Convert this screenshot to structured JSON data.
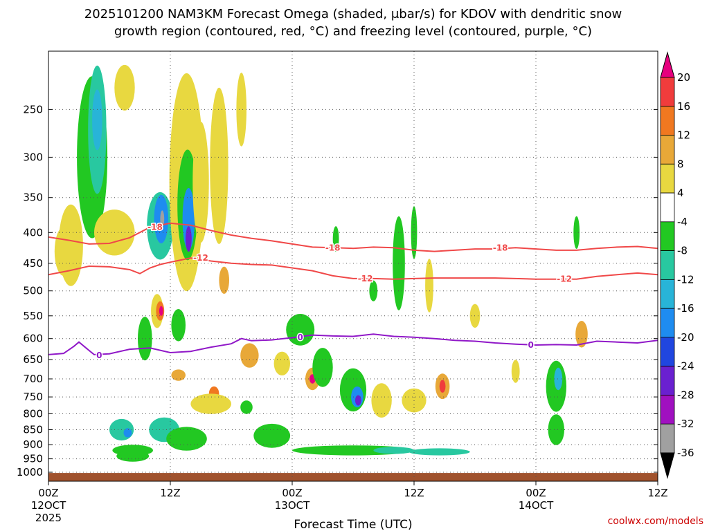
{
  "chart_data": {
    "type": "heatmap",
    "title_line1": "2025101200 NAM3KM Forecast Omega (shaded, μbar/s) for KDOV with dendritic snow",
    "title_line2": "growth region (contoured, red, °C) and freezing level (contoured, purple, °C)",
    "xlabel": "Forecast Time (UTC)",
    "credit": "coolwx.com/models",
    "x_range_hours": [
      0,
      60
    ],
    "y_range_hpa": [
      200,
      1035
    ],
    "y_ticks": [
      250,
      300,
      350,
      400,
      450,
      500,
      550,
      600,
      650,
      700,
      750,
      800,
      850,
      900,
      950,
      1000
    ],
    "x_ticks": [
      {
        "hour": 0,
        "time": "00Z",
        "date": "12OCT",
        "year": "2025"
      },
      {
        "hour": 12,
        "time": "12Z",
        "date": "",
        "year": ""
      },
      {
        "hour": 24,
        "time": "00Z",
        "date": "13OCT",
        "year": ""
      },
      {
        "hour": 36,
        "time": "12Z",
        "date": "",
        "year": ""
      },
      {
        "hour": 48,
        "time": "00Z",
        "date": "14OCT",
        "year": ""
      },
      {
        "hour": 60,
        "time": "12Z",
        "date": "",
        "year": ""
      }
    ],
    "colorbar": {
      "labels": [
        "20",
        "16",
        "12",
        "8",
        "4",
        "-4",
        "-8",
        "-12",
        "-16",
        "-20",
        "-24",
        "-28",
        "-32",
        "-36"
      ],
      "segments": [
        {
          "from": 20,
          "to": 24,
          "color": "#e6007e"
        },
        {
          "from": 16,
          "to": 20,
          "color": "#f03c3c"
        },
        {
          "from": 12,
          "to": 16,
          "color": "#f07820"
        },
        {
          "from": 8,
          "to": 12,
          "color": "#e8a838"
        },
        {
          "from": 4,
          "to": 8,
          "color": "#e8d840"
        },
        {
          "from": -4,
          "to": 4,
          "color": "#ffffff"
        },
        {
          "from": -8,
          "to": -4,
          "color": "#22c822"
        },
        {
          "from": -12,
          "to": -8,
          "color": "#28c8a0"
        },
        {
          "from": -16,
          "to": -12,
          "color": "#28b4d8"
        },
        {
          "from": -20,
          "to": -16,
          "color": "#1e8cf0"
        },
        {
          "from": -24,
          "to": -20,
          "color": "#2046e0"
        },
        {
          "from": -28,
          "to": -24,
          "color": "#6a20d0"
        },
        {
          "from": -32,
          "to": -28,
          "color": "#a010c0"
        },
        {
          "from": -36,
          "to": -32,
          "color": "#a0a0a0"
        },
        {
          "from": -40,
          "to": -36,
          "color": "#000000"
        }
      ]
    },
    "contours": [
      {
        "name": "-18C",
        "color": "#f04848",
        "label": "-18",
        "points": [
          [
            0,
            407
          ],
          [
            2,
            412
          ],
          [
            4,
            418
          ],
          [
            6,
            417
          ],
          [
            8,
            408
          ],
          [
            10,
            392
          ],
          [
            12,
            386
          ],
          [
            14,
            389
          ],
          [
            16,
            397
          ],
          [
            18,
            404
          ],
          [
            20,
            409
          ],
          [
            22,
            413
          ],
          [
            24,
            418
          ],
          [
            26,
            423
          ],
          [
            28,
            424
          ],
          [
            30,
            425
          ],
          [
            32,
            423
          ],
          [
            34,
            424
          ],
          [
            36,
            428
          ],
          [
            38,
            430
          ],
          [
            40,
            428
          ],
          [
            42,
            426
          ],
          [
            44,
            426
          ],
          [
            46,
            424
          ],
          [
            48,
            426
          ],
          [
            50,
            428
          ],
          [
            52,
            428
          ],
          [
            54,
            425
          ],
          [
            56,
            423
          ],
          [
            58,
            422
          ],
          [
            60,
            425
          ]
        ],
        "label_positions": [
          [
            10.5,
            392
          ],
          [
            28,
            424
          ],
          [
            44.5,
            424
          ]
        ]
      },
      {
        "name": "-12C",
        "color": "#f04848",
        "label": "-12",
        "points": [
          [
            0,
            470
          ],
          [
            2,
            463
          ],
          [
            4,
            455
          ],
          [
            6,
            456
          ],
          [
            8,
            461
          ],
          [
            9,
            468
          ],
          [
            10,
            458
          ],
          [
            11,
            452
          ],
          [
            12,
            448
          ],
          [
            14,
            441
          ],
          [
            16,
            446
          ],
          [
            18,
            450
          ],
          [
            20,
            452
          ],
          [
            22,
            453
          ],
          [
            24,
            458
          ],
          [
            26,
            463
          ],
          [
            28,
            472
          ],
          [
            30,
            477
          ],
          [
            32,
            477
          ],
          [
            34,
            478
          ],
          [
            36,
            477
          ],
          [
            38,
            476
          ],
          [
            40,
            476
          ],
          [
            42,
            476
          ],
          [
            44,
            476
          ],
          [
            46,
            477
          ],
          [
            48,
            478
          ],
          [
            50,
            478
          ],
          [
            52,
            478
          ],
          [
            54,
            473
          ],
          [
            56,
            470
          ],
          [
            58,
            467
          ],
          [
            60,
            470
          ]
        ],
        "label_positions": [
          [
            15,
            441
          ],
          [
            31.2,
            477
          ],
          [
            50.8,
            478
          ]
        ]
      },
      {
        "name": "0C",
        "color": "#9018c8",
        "label": "0",
        "points": [
          [
            0,
            638
          ],
          [
            1.5,
            635
          ],
          [
            2.5,
            618
          ],
          [
            3,
            608
          ],
          [
            3.7,
            622
          ],
          [
            4.5,
            638
          ],
          [
            6,
            636
          ],
          [
            8,
            625
          ],
          [
            10,
            622
          ],
          [
            12,
            633
          ],
          [
            14,
            630
          ],
          [
            16,
            620
          ],
          [
            18,
            612
          ],
          [
            19,
            600
          ],
          [
            20,
            605
          ],
          [
            22,
            603
          ],
          [
            24,
            598
          ],
          [
            26,
            592
          ],
          [
            28,
            594
          ],
          [
            30,
            595
          ],
          [
            32,
            590
          ],
          [
            34,
            595
          ],
          [
            36,
            597
          ],
          [
            38,
            600
          ],
          [
            40,
            604
          ],
          [
            42,
            606
          ],
          [
            44,
            610
          ],
          [
            46,
            613
          ],
          [
            48,
            615
          ],
          [
            50,
            614
          ],
          [
            52,
            615
          ],
          [
            54,
            606
          ],
          [
            56,
            608
          ],
          [
            58,
            610
          ],
          [
            60,
            604
          ]
        ],
        "label_positions": [
          [
            5,
            640
          ],
          [
            24.8,
            597
          ],
          [
            47.5,
            615
          ]
        ]
      }
    ],
    "omega_features": [
      {
        "hour": 4.3,
        "hpa": 300,
        "value": -6,
        "dx": 1.5,
        "dp": 180
      },
      {
        "hour": 4.8,
        "hpa": 270,
        "value": -10,
        "dx": 0.9,
        "dp": 130
      },
      {
        "hour": 4.8,
        "hpa": 260,
        "value": -14,
        "dx": 0.5,
        "dp": 60
      },
      {
        "hour": 7.5,
        "hpa": 230,
        "value": 4,
        "dx": 1.0,
        "dp": 40
      },
      {
        "hour": 1.5,
        "hpa": 430,
        "value": 4,
        "dx": 0.9,
        "dp": 80
      },
      {
        "hour": 2.2,
        "hpa": 420,
        "value": 4,
        "dx": 1.2,
        "dp": 130
      },
      {
        "hour": 6.5,
        "hpa": 400,
        "value": 4,
        "dx": 2.0,
        "dp": 70
      },
      {
        "hour": 11.0,
        "hpa": 390,
        "value": -10,
        "dx": 1.3,
        "dp": 100
      },
      {
        "hour": 11.1,
        "hpa": 380,
        "value": -18,
        "dx": 0.7,
        "dp": 70
      },
      {
        "hour": 11.2,
        "hpa": 380,
        "value": -36,
        "dx": 0.2,
        "dp": 25
      },
      {
        "hour": 13.6,
        "hpa": 330,
        "value": 4,
        "dx": 1.7,
        "dp": 260
      },
      {
        "hour": 13.7,
        "hpa": 360,
        "value": -8,
        "dx": 1.0,
        "dp": 150
      },
      {
        "hour": 13.8,
        "hpa": 380,
        "value": -17,
        "dx": 0.6,
        "dp": 90
      },
      {
        "hour": 13.8,
        "hpa": 410,
        "value": -25,
        "dx": 0.3,
        "dp": 40
      },
      {
        "hour": 15.0,
        "hpa": 330,
        "value": 4,
        "dx": 0.8,
        "dp": 150
      },
      {
        "hour": 16.8,
        "hpa": 310,
        "value": 4,
        "dx": 0.9,
        "dp": 180
      },
      {
        "hour": 19.0,
        "hpa": 250,
        "value": 4,
        "dx": 0.5,
        "dp": 70
      },
      {
        "hour": 10.7,
        "hpa": 540,
        "value": 4,
        "dx": 0.6,
        "dp": 70
      },
      {
        "hour": 11.0,
        "hpa": 540,
        "value": 14,
        "dx": 0.4,
        "dp": 40
      },
      {
        "hour": 11.1,
        "hpa": 540,
        "value": 22,
        "dx": 0.2,
        "dp": 20
      },
      {
        "hour": 17.3,
        "hpa": 480,
        "value": 8,
        "dx": 0.5,
        "dp": 50
      },
      {
        "hour": 12.8,
        "hpa": 570,
        "value": -8,
        "dx": 0.7,
        "dp": 70
      },
      {
        "hour": 9.5,
        "hpa": 600,
        "value": -6,
        "dx": 0.7,
        "dp": 100
      },
      {
        "hour": 7.2,
        "hpa": 850,
        "value": -10,
        "dx": 1.2,
        "dp": 70
      },
      {
        "hour": 7.8,
        "hpa": 860,
        "value": -20,
        "dx": 0.4,
        "dp": 30
      },
      {
        "hour": 12.8,
        "hpa": 690,
        "value": 10,
        "dx": 0.7,
        "dp": 30
      },
      {
        "hour": 16.3,
        "hpa": 740,
        "value": 14,
        "dx": 0.5,
        "dp": 40
      },
      {
        "hour": 16.0,
        "hpa": 770,
        "value": 4,
        "dx": 2.0,
        "dp": 60
      },
      {
        "hour": 11.4,
        "hpa": 850,
        "value": -10,
        "dx": 1.5,
        "dp": 80
      },
      {
        "hour": 13.6,
        "hpa": 880,
        "value": -8,
        "dx": 2.0,
        "dp": 80
      },
      {
        "hour": 19.8,
        "hpa": 640,
        "value": 8,
        "dx": 0.9,
        "dp": 60
      },
      {
        "hour": 19.5,
        "hpa": 780,
        "value": -6,
        "dx": 0.6,
        "dp": 40
      },
      {
        "hour": 22.0,
        "hpa": 870,
        "value": -6,
        "dx": 1.8,
        "dp": 80
      },
      {
        "hour": 23.0,
        "hpa": 660,
        "value": 4,
        "dx": 0.8,
        "dp": 60
      },
      {
        "hour": 24.8,
        "hpa": 580,
        "value": -6,
        "dx": 1.4,
        "dp": 70
      },
      {
        "hour": 26.0,
        "hpa": 700,
        "value": 10,
        "dx": 0.7,
        "dp": 60
      },
      {
        "hour": 26.0,
        "hpa": 700,
        "value": 20,
        "dx": 0.3,
        "dp": 25
      },
      {
        "hour": 27.0,
        "hpa": 670,
        "value": -6,
        "dx": 1.0,
        "dp": 100
      },
      {
        "hour": 30.0,
        "hpa": 730,
        "value": -8,
        "dx": 1.3,
        "dp": 120
      },
      {
        "hour": 30.4,
        "hpa": 750,
        "value": -18,
        "dx": 0.6,
        "dp": 60
      },
      {
        "hour": 30.5,
        "hpa": 760,
        "value": -28,
        "dx": 0.3,
        "dp": 30
      },
      {
        "hour": 28.3,
        "hpa": 410,
        "value": -6,
        "dx": 0.3,
        "dp": 40
      },
      {
        "hour": 32.0,
        "hpa": 500,
        "value": -8,
        "dx": 0.4,
        "dp": 40
      },
      {
        "hour": 34.5,
        "hpa": 450,
        "value": -6,
        "dx": 0.6,
        "dp": 160
      },
      {
        "hour": 36.0,
        "hpa": 400,
        "value": -6,
        "dx": 0.3,
        "dp": 80
      },
      {
        "hour": 37.5,
        "hpa": 490,
        "value": 4,
        "dx": 0.4,
        "dp": 100
      },
      {
        "hour": 32.8,
        "hpa": 760,
        "value": 4,
        "dx": 1.0,
        "dp": 100
      },
      {
        "hour": 36.0,
        "hpa": 760,
        "value": 4,
        "dx": 1.2,
        "dp": 70
      },
      {
        "hour": 38.8,
        "hpa": 720,
        "value": 8,
        "dx": 0.7,
        "dp": 70
      },
      {
        "hour": 38.8,
        "hpa": 720,
        "value": 18,
        "dx": 0.3,
        "dp": 35
      },
      {
        "hour": 42.0,
        "hpa": 550,
        "value": 4,
        "dx": 0.5,
        "dp": 50
      },
      {
        "hour": 46.0,
        "hpa": 680,
        "value": 4,
        "dx": 0.4,
        "dp": 60
      },
      {
        "hour": 50.0,
        "hpa": 720,
        "value": -6,
        "dx": 1.0,
        "dp": 140
      },
      {
        "hour": 50.2,
        "hpa": 700,
        "value": -14,
        "dx": 0.4,
        "dp": 60
      },
      {
        "hour": 52.5,
        "hpa": 590,
        "value": 8,
        "dx": 0.6,
        "dp": 60
      },
      {
        "hour": 52.0,
        "hpa": 400,
        "value": -6,
        "dx": 0.3,
        "dp": 50
      },
      {
        "hour": 8.3,
        "hpa": 920,
        "value": -6,
        "dx": 2.0,
        "dp": 40
      },
      {
        "hour": 8.3,
        "hpa": 940,
        "value": -6,
        "dx": 1.6,
        "dp": 40
      },
      {
        "hour": 30.0,
        "hpa": 920,
        "value": -6,
        "dx": 6.0,
        "dp": 35
      },
      {
        "hour": 34.0,
        "hpa": 920,
        "value": -12,
        "dx": 2.0,
        "dp": 25
      },
      {
        "hour": 38.5,
        "hpa": 925,
        "value": -10,
        "dx": 3.0,
        "dp": 25
      },
      {
        "hour": 50.0,
        "hpa": 850,
        "value": -8,
        "dx": 0.8,
        "dp": 100
      }
    ],
    "ground": {
      "color": "#a0522d",
      "hpa_from": 1003,
      "hpa_to": 1035
    }
  }
}
